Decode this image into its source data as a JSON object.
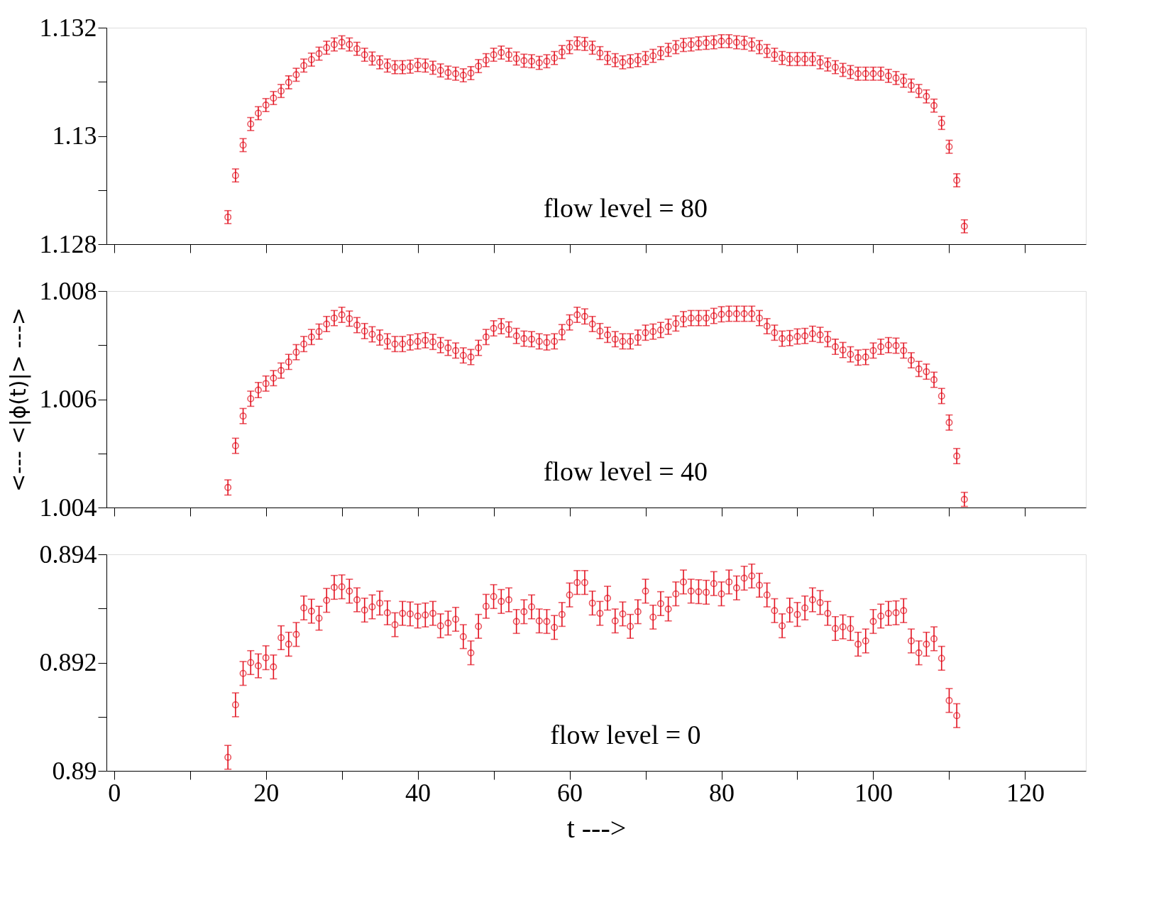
{
  "chart_data": [
    {
      "type": "scatter",
      "marker": "circle",
      "tick_labels": "y",
      "xlim": [
        -1,
        128
      ],
      "xticks": [
        0,
        {
          "value": 10,
          "label": null
        },
        20,
        {
          "value": 30,
          "label": null
        },
        40,
        {
          "value": 50,
          "label": null
        },
        60,
        {
          "value": 70,
          "label": null
        },
        80,
        {
          "value": 90,
          "label": null
        },
        100,
        {
          "value": 110,
          "label": null
        },
        120
      ],
      "ylim": [
        1.128,
        1.132
      ],
      "yticks": [
        1.128,
        {
          "value": 1.129,
          "label": null
        },
        1.13,
        {
          "value": 1.131,
          "label": null
        },
        1.132
      ],
      "annotations": [
        "flow level = 80"
      ],
      "x": [
        15,
        16,
        17,
        18,
        19,
        20,
        21,
        22,
        23,
        24,
        25,
        26,
        27,
        28,
        29,
        30,
        31,
        32,
        33,
        34,
        35,
        36,
        37,
        38,
        39,
        40,
        41,
        42,
        43,
        44,
        45,
        46,
        47,
        48,
        49,
        50,
        51,
        52,
        53,
        54,
        55,
        56,
        57,
        58,
        59,
        60,
        61,
        62,
        63,
        64,
        65,
        66,
        67,
        68,
        69,
        70,
        71,
        72,
        73,
        74,
        75,
        76,
        77,
        78,
        79,
        80,
        81,
        82,
        83,
        84,
        85,
        86,
        87,
        88,
        89,
        90,
        91,
        92,
        93,
        94,
        95,
        96,
        97,
        98,
        99,
        100,
        101,
        102,
        103,
        104,
        105,
        106,
        107,
        108,
        109,
        110,
        111,
        112
      ],
      "series": [
        {
          "color": "#e2101e",
          "values": [
            1.1285,
            1.12927,
            1.12983,
            1.13022,
            1.13042,
            1.13057,
            1.1307,
            1.13083,
            1.13099,
            1.13113,
            1.1313,
            1.13141,
            1.13152,
            1.13163,
            1.13169,
            1.13173,
            1.13169,
            1.13161,
            1.1315,
            1.13143,
            1.13136,
            1.1313,
            1.13127,
            1.13127,
            1.13128,
            1.13131,
            1.1313,
            1.13126,
            1.13121,
            1.13117,
            1.13115,
            1.13112,
            1.13116,
            1.13129,
            1.1314,
            1.1315,
            1.13154,
            1.1315,
            1.13143,
            1.13139,
            1.13138,
            1.13135,
            1.13138,
            1.13144,
            1.13155,
            1.13164,
            1.13171,
            1.1317,
            1.13163,
            1.13153,
            1.13144,
            1.1314,
            1.13136,
            1.13138,
            1.1314,
            1.13144,
            1.13148,
            1.13153,
            1.13159,
            1.13164,
            1.13168,
            1.13169,
            1.13171,
            1.13172,
            1.13173,
            1.13175,
            1.13175,
            1.13173,
            1.13172,
            1.13169,
            1.13164,
            1.13157,
            1.1315,
            1.13144,
            1.13142,
            1.13142,
            1.13142,
            1.13142,
            1.13136,
            1.13132,
            1.13127,
            1.13122,
            1.13118,
            1.13115,
            1.13115,
            1.13115,
            1.13115,
            1.13111,
            1.13107,
            1.13102,
            1.13093,
            1.13083,
            1.13073,
            1.13056,
            1.13024,
            1.1298,
            1.12918,
            1.12833
          ],
          "errors": [
            0.00012,
            0.00012,
            0.00012,
            0.00012,
            0.00012,
            0.00012,
            0.00012,
            0.00012,
            0.00012,
            0.00012,
            0.00012,
            0.00012,
            0.00012,
            0.00012,
            0.00012,
            0.00012,
            0.00012,
            0.00012,
            0.00012,
            0.00012,
            0.00012,
            0.00012,
            0.00012,
            0.00012,
            0.00012,
            0.00012,
            0.00012,
            0.00012,
            0.00012,
            0.00012,
            0.00012,
            0.00012,
            0.00012,
            0.00012,
            0.00012,
            0.00012,
            0.00012,
            0.00012,
            0.00012,
            0.00012,
            0.00012,
            0.00012,
            0.00012,
            0.00012,
            0.00012,
            0.00012,
            0.00012,
            0.00012,
            0.00012,
            0.00012,
            0.00012,
            0.00012,
            0.00012,
            0.00012,
            0.00012,
            0.00012,
            0.00012,
            0.00012,
            0.00012,
            0.00012,
            0.00012,
            0.00012,
            0.00012,
            0.00012,
            0.00012,
            0.00012,
            0.00012,
            0.00012,
            0.00012,
            0.00012,
            0.00012,
            0.00012,
            0.00012,
            0.00012,
            0.00012,
            0.00012,
            0.00012,
            0.00012,
            0.00012,
            0.00012,
            0.00012,
            0.00012,
            0.00012,
            0.00012,
            0.00012,
            0.00012,
            0.00012,
            0.00012,
            0.00012,
            0.00012,
            0.00012,
            0.00012,
            0.00012,
            0.00012,
            0.00012,
            0.00012,
            0.00012,
            0.00012
          ]
        }
      ]
    },
    {
      "type": "scatter",
      "marker": "circle",
      "tick_labels": "y",
      "ylabel": "<---   <|ϕ(t)|>   --->",
      "xlim": [
        -1,
        128
      ],
      "xticks": [
        0,
        {
          "value": 10,
          "label": null
        },
        20,
        {
          "value": 30,
          "label": null
        },
        40,
        {
          "value": 50,
          "label": null
        },
        60,
        {
          "value": 70,
          "label": null
        },
        80,
        {
          "value": 90,
          "label": null
        },
        100,
        {
          "value": 110,
          "label": null
        },
        120
      ],
      "ylim": [
        1.004,
        1.008
      ],
      "yticks": [
        1.004,
        {
          "value": 1.005,
          "label": null
        },
        1.006,
        {
          "value": 1.007,
          "label": null
        },
        1.008
      ],
      "annotations": [
        "flow level = 40"
      ],
      "x": [
        15,
        16,
        17,
        18,
        19,
        20,
        21,
        22,
        23,
        24,
        25,
        26,
        27,
        28,
        29,
        30,
        31,
        32,
        33,
        34,
        35,
        36,
        37,
        38,
        39,
        40,
        41,
        42,
        43,
        44,
        45,
        46,
        47,
        48,
        49,
        50,
        51,
        52,
        53,
        54,
        55,
        56,
        57,
        58,
        59,
        60,
        61,
        62,
        63,
        64,
        65,
        66,
        67,
        68,
        69,
        70,
        71,
        72,
        73,
        74,
        75,
        76,
        77,
        78,
        79,
        80,
        81,
        82,
        83,
        84,
        85,
        86,
        87,
        88,
        89,
        90,
        91,
        92,
        93,
        94,
        95,
        96,
        97,
        98,
        99,
        100,
        101,
        102,
        103,
        104,
        105,
        106,
        107,
        108,
        109,
        110,
        111,
        112
      ],
      "series": [
        {
          "color": "#e2101e",
          "values": [
            1.00437,
            1.00514,
            1.00569,
            1.00601,
            1.00617,
            1.00629,
            1.00639,
            1.00653,
            1.00669,
            1.00687,
            1.00702,
            1.00715,
            1.00725,
            1.00739,
            1.0075,
            1.00756,
            1.00749,
            1.00737,
            1.00726,
            1.0072,
            1.00714,
            1.00707,
            1.00702,
            1.00702,
            1.00705,
            1.00707,
            1.00709,
            1.00706,
            1.007,
            1.00695,
            1.0069,
            1.00681,
            1.00678,
            1.00695,
            1.00715,
            1.00731,
            1.00735,
            1.00729,
            1.00717,
            1.00712,
            1.00711,
            1.00707,
            1.00705,
            1.00707,
            1.00724,
            1.00742,
            1.00756,
            1.00753,
            1.00739,
            1.00726,
            1.00719,
            1.00711,
            1.00707,
            1.00707,
            1.00714,
            1.00723,
            1.00725,
            1.00728,
            1.00734,
            1.0074,
            1.00748,
            1.0075,
            1.0075,
            1.0075,
            1.00754,
            1.00757,
            1.00758,
            1.00758,
            1.00758,
            1.00758,
            1.0075,
            1.00735,
            1.00723,
            1.00712,
            1.00713,
            1.00716,
            1.00717,
            1.00721,
            1.00719,
            1.00711,
            1.00697,
            1.00691,
            1.00683,
            1.00677,
            1.00678,
            1.0069,
            1.00697,
            1.007,
            1.00699,
            1.0069,
            1.00672,
            1.00656,
            1.00651,
            1.00636,
            1.00606,
            1.00557,
            1.00495,
            1.00415
          ],
          "errors": [
            0.00014,
            0.00014,
            0.00014,
            0.00014,
            0.00014,
            0.00014,
            0.00014,
            0.00014,
            0.00014,
            0.00014,
            0.00014,
            0.00014,
            0.00014,
            0.00014,
            0.00014,
            0.00014,
            0.00014,
            0.00014,
            0.00014,
            0.00014,
            0.00014,
            0.00014,
            0.00014,
            0.00014,
            0.00014,
            0.00014,
            0.00014,
            0.00014,
            0.00014,
            0.00014,
            0.00014,
            0.00014,
            0.00014,
            0.00014,
            0.00014,
            0.00014,
            0.00014,
            0.00014,
            0.00014,
            0.00014,
            0.00014,
            0.00014,
            0.00014,
            0.00014,
            0.00014,
            0.00014,
            0.00014,
            0.00014,
            0.00014,
            0.00014,
            0.00014,
            0.00014,
            0.00014,
            0.00014,
            0.00014,
            0.00014,
            0.00014,
            0.00014,
            0.00014,
            0.00014,
            0.00014,
            0.00014,
            0.00014,
            0.00014,
            0.00014,
            0.00014,
            0.00014,
            0.00014,
            0.00014,
            0.00014,
            0.00014,
            0.00014,
            0.00014,
            0.00014,
            0.00014,
            0.00014,
            0.00014,
            0.00014,
            0.00014,
            0.00014,
            0.00014,
            0.00014,
            0.00014,
            0.00014,
            0.00014,
            0.00014,
            0.00014,
            0.00014,
            0.00014,
            0.00014,
            0.00014,
            0.00014,
            0.00014,
            0.00014,
            0.00014,
            0.00014,
            0.00014,
            0.00013
          ]
        }
      ]
    },
    {
      "type": "scatter",
      "marker": "circle",
      "xlabel": "t --->",
      "xlim": [
        -1,
        128
      ],
      "xticks": [
        0,
        {
          "value": 10,
          "label": null
        },
        20,
        {
          "value": 30,
          "label": null
        },
        40,
        {
          "value": 50,
          "label": null
        },
        60,
        {
          "value": 70,
          "label": null
        },
        80,
        {
          "value": 90,
          "label": null
        },
        100,
        {
          "value": 110,
          "label": null
        },
        120
      ],
      "ylim": [
        0.89,
        0.894
      ],
      "yticks": [
        0.89,
        {
          "value": 0.891,
          "label": null
        },
        0.892,
        {
          "value": 0.893,
          "label": null
        },
        0.894
      ],
      "annotations": [
        "flow level = 0"
      ],
      "x": [
        15,
        16,
        17,
        18,
        19,
        20,
        21,
        22,
        23,
        24,
        25,
        26,
        27,
        28,
        29,
        30,
        31,
        32,
        33,
        34,
        35,
        36,
        37,
        38,
        39,
        40,
        41,
        42,
        43,
        44,
        45,
        46,
        47,
        48,
        49,
        50,
        51,
        52,
        53,
        54,
        55,
        56,
        57,
        58,
        59,
        60,
        61,
        62,
        63,
        64,
        65,
        66,
        67,
        68,
        69,
        70,
        71,
        72,
        73,
        74,
        75,
        76,
        77,
        78,
        79,
        80,
        81,
        82,
        83,
        84,
        85,
        86,
        87,
        88,
        89,
        90,
        91,
        92,
        93,
        94,
        95,
        96,
        97,
        98,
        99,
        100,
        101,
        102,
        103,
        104,
        105,
        106,
        107,
        108,
        109,
        110,
        111
      ],
      "series": [
        {
          "color": "#e2101e",
          "values": [
            0.89025,
            0.89122,
            0.8918,
            0.892,
            0.89194,
            0.89209,
            0.89192,
            0.89246,
            0.89234,
            0.89252,
            0.89301,
            0.89295,
            0.89282,
            0.89315,
            0.89339,
            0.8934,
            0.89332,
            0.89316,
            0.89297,
            0.89303,
            0.8931,
            0.89292,
            0.8927,
            0.89291,
            0.8929,
            0.89286,
            0.89288,
            0.89291,
            0.89268,
            0.89273,
            0.8928,
            0.89248,
            0.89218,
            0.89267,
            0.89304,
            0.89322,
            0.89313,
            0.89316,
            0.89276,
            0.89294,
            0.89303,
            0.89277,
            0.89276,
            0.89265,
            0.89289,
            0.89325,
            0.89348,
            0.89348,
            0.8931,
            0.89291,
            0.89319,
            0.89277,
            0.8929,
            0.89267,
            0.89294,
            0.89332,
            0.89284,
            0.89309,
            0.89299,
            0.89327,
            0.89349,
            0.89332,
            0.89331,
            0.8933,
            0.89346,
            0.89327,
            0.89349,
            0.89338,
            0.89356,
            0.8936,
            0.89343,
            0.89325,
            0.89296,
            0.89268,
            0.89297,
            0.89289,
            0.89301,
            0.89316,
            0.89311,
            0.89291,
            0.89263,
            0.89266,
            0.89263,
            0.89234,
            0.8924,
            0.89276,
            0.89286,
            0.89291,
            0.89292,
            0.89296,
            0.8924,
            0.89218,
            0.89234,
            0.89244,
            0.89208,
            0.8913,
            0.89102
          ],
          "errors": [
            0.00022,
            0.00022,
            0.00022,
            0.00022,
            0.00022,
            0.00022,
            0.00022,
            0.00022,
            0.00022,
            0.00022,
            0.00022,
            0.00022,
            0.00022,
            0.00022,
            0.00022,
            0.00022,
            0.00022,
            0.00022,
            0.00022,
            0.00022,
            0.00022,
            0.00022,
            0.00022,
            0.00022,
            0.00022,
            0.00022,
            0.00022,
            0.00022,
            0.00022,
            0.00022,
            0.00022,
            0.00022,
            0.00022,
            0.00022,
            0.00022,
            0.00022,
            0.00022,
            0.00022,
            0.00022,
            0.00022,
            0.00022,
            0.00022,
            0.00022,
            0.00022,
            0.00022,
            0.00022,
            0.00022,
            0.00022,
            0.00022,
            0.00022,
            0.00022,
            0.00022,
            0.00022,
            0.00022,
            0.00022,
            0.00022,
            0.00022,
            0.00022,
            0.00022,
            0.00022,
            0.00022,
            0.00022,
            0.00022,
            0.00022,
            0.00022,
            0.00022,
            0.00022,
            0.00022,
            0.00022,
            0.00022,
            0.00022,
            0.00022,
            0.00022,
            0.00022,
            0.00022,
            0.00022,
            0.00022,
            0.00022,
            0.00022,
            0.00022,
            0.00022,
            0.00022,
            0.00022,
            0.00022,
            0.00022,
            0.00022,
            0.00022,
            0.00022,
            0.00022,
            0.00022,
            0.00022,
            0.00022,
            0.00022,
            0.00022,
            0.00022,
            0.00022,
            0.00022
          ]
        }
      ]
    }
  ]
}
